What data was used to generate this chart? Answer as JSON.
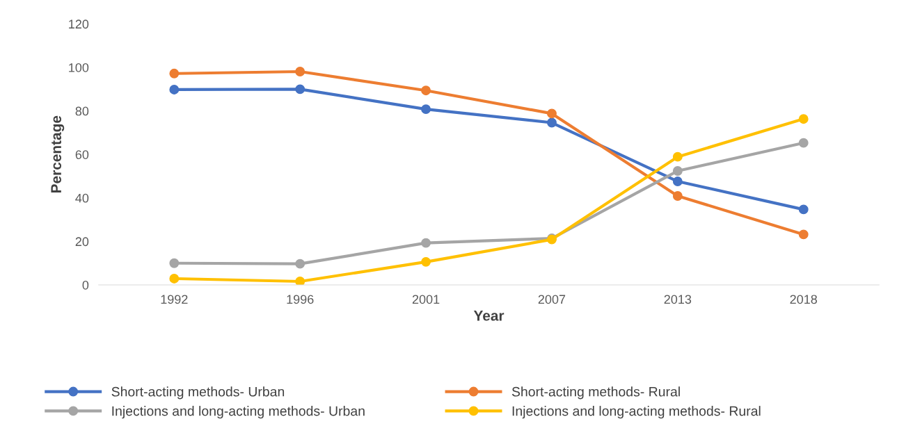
{
  "chart_data": {
    "type": "line",
    "xlabel": "Year",
    "ylabel": "Percentage",
    "categories": [
      "1992",
      "1996",
      "2001",
      "2007",
      "2013",
      "2018"
    ],
    "series": [
      {
        "name": "Short-acting methods- Urban",
        "color": "#4472c4",
        "values": [
          89.8,
          90,
          80.8,
          74.6,
          47.6,
          34.7
        ]
      },
      {
        "name": "Short-acting methods- Rural",
        "color": "#ed7d31",
        "values": [
          97.2,
          98.1,
          89.4,
          78.8,
          40.9,
          23.2
        ]
      },
      {
        "name": "Injections and long-acting methods- Urban",
        "color": "#a5a5a5",
        "values": [
          10,
          9.7,
          19.3,
          21.4,
          52.4,
          65.3
        ]
      },
      {
        "name": "Injections and long-acting methods- Rural",
        "color": "#ffc000",
        "values": [
          2.9,
          1.6,
          10.6,
          20.9,
          58.9,
          76.3
        ]
      }
    ],
    "ylim": [
      0,
      120
    ],
    "yticks": [
      0,
      20,
      40,
      60,
      80,
      100,
      120
    ],
    "grid": false,
    "legend": "bottom",
    "marker": "circle",
    "line_style": "solid"
  }
}
